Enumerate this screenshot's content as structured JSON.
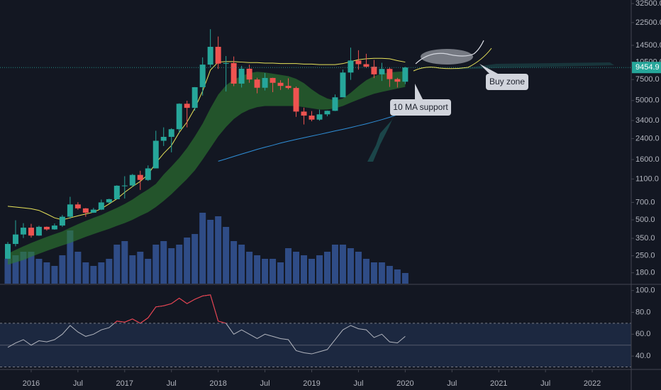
{
  "chart_data": {
    "type": "candlestick",
    "x": [
      "2015-10",
      "2015-11",
      "2015-12",
      "2016-01",
      "2016-02",
      "2016-03",
      "2016-04",
      "2016-05",
      "2016-06",
      "2016-07",
      "2016-08",
      "2016-09",
      "2016-10",
      "2016-11",
      "2016-12",
      "2017-01",
      "2017-02",
      "2017-03",
      "2017-04",
      "2017-05",
      "2017-06",
      "2017-07",
      "2017-08",
      "2017-09",
      "2017-10",
      "2017-11",
      "2017-12",
      "2018-01",
      "2018-02",
      "2018-03",
      "2018-04",
      "2018-05",
      "2018-06",
      "2018-07",
      "2018-08",
      "2018-09",
      "2018-10",
      "2018-11",
      "2018-12",
      "2019-01",
      "2019-02",
      "2019-03",
      "2019-04",
      "2019-05",
      "2019-06",
      "2019-07",
      "2019-08",
      "2019-09",
      "2019-10",
      "2019-11",
      "2019-12",
      "2020-01"
    ],
    "open": [
      236,
      314,
      377,
      430,
      369,
      437,
      416,
      448,
      531,
      673,
      624,
      574,
      609,
      700,
      745,
      966,
      970,
      1190,
      1080,
      1350,
      2300,
      2480,
      2875,
      4700,
      4340,
      6470,
      10000,
      14100,
      10200,
      10300,
      6930,
      9240,
      7500,
      6400,
      7730,
      7040,
      6630,
      6370,
      4040,
      3740,
      3460,
      3830,
      4100,
      5320,
      8580,
      10820,
      10090,
      9600,
      8290,
      9200,
      7560,
      7190
    ],
    "high": [
      326,
      496,
      469,
      463,
      446,
      440,
      466,
      549,
      780,
      703,
      628,
      630,
      740,
      752,
      975,
      1161,
      1212,
      1290,
      1430,
      2790,
      2980,
      2930,
      4740,
      4980,
      6480,
      11500,
      19800,
      17200,
      11800,
      11700,
      9770,
      9990,
      7760,
      8500,
      7760,
      7400,
      7680,
      6550,
      4360,
      4080,
      4190,
      4120,
      5620,
      9100,
      13880,
      13200,
      12330,
      10950,
      10350,
      9500,
      7750,
      9580
    ],
    "low": [
      235,
      300,
      352,
      355,
      367,
      406,
      413,
      437,
      511,
      608,
      531,
      572,
      604,
      685,
      742,
      755,
      945,
      891,
      1060,
      1350,
      2080,
      1840,
      2700,
      2980,
      4110,
      5500,
      9500,
      9200,
      5950,
      6600,
      6430,
      7040,
      5750,
      6070,
      5880,
      6130,
      6200,
      3650,
      3150,
      3350,
      3390,
      3690,
      4080,
      5320,
      7450,
      9070,
      9350,
      7710,
      7300,
      6500,
      6430,
      6860
    ],
    "close": [
      314,
      377,
      430,
      369,
      437,
      416,
      448,
      531,
      673,
      624,
      574,
      609,
      700,
      745,
      966,
      970,
      1190,
      1080,
      1350,
      2300,
      2480,
      2875,
      4700,
      4340,
      6470,
      10000,
      14100,
      10200,
      10300,
      6930,
      9240,
      7500,
      6400,
      7730,
      7040,
      6630,
      6370,
      4040,
      3740,
      3460,
      3830,
      4100,
      5320,
      8580,
      10820,
      10090,
      9600,
      8290,
      9200,
      7560,
      7190,
      9454.9
    ],
    "colors": {
      "up": "#26a69a",
      "down": "#ef5350"
    },
    "xlim": [
      "2015-09",
      "2022-06"
    ],
    "xticks": [
      {
        "value": "2016-01",
        "label": "2016"
      },
      {
        "value": "2016-07",
        "label": "Jul"
      },
      {
        "value": "2017-01",
        "label": "2017"
      },
      {
        "value": "2017-07",
        "label": "Jul"
      },
      {
        "value": "2018-01",
        "label": "2018"
      },
      {
        "value": "2018-07",
        "label": "Jul"
      },
      {
        "value": "2019-01",
        "label": "2019"
      },
      {
        "value": "2019-07",
        "label": "Jul"
      },
      {
        "value": "2020-01",
        "label": "2020"
      },
      {
        "value": "2020-07",
        "label": "Jul"
      },
      {
        "value": "2021-01",
        "label": "2021"
      },
      {
        "value": "2021-07",
        "label": "Jul"
      },
      {
        "value": "2022-01",
        "label": "2022"
      }
    ],
    "ylim": [
      146,
      34800
    ],
    "log_scale": true,
    "yticks": [
      {
        "value": 180,
        "label": "180.0"
      },
      {
        "value": 250,
        "label": "250.0"
      },
      {
        "value": 350,
        "label": "350.0"
      },
      {
        "value": 500,
        "label": "500.0"
      },
      {
        "value": 700,
        "label": "700.0"
      },
      {
        "value": 1100,
        "label": "1100.0"
      },
      {
        "value": 1600,
        "label": "1600.0"
      },
      {
        "value": 2400,
        "label": "2400.0"
      },
      {
        "value": 3400,
        "label": "3400.0"
      },
      {
        "value": 5000,
        "label": "5000.0"
      },
      {
        "value": 7500,
        "label": "7500.0"
      },
      {
        "value": 10500,
        "label": "10500.0"
      },
      {
        "value": 14500,
        "label": "14500.0"
      },
      {
        "value": 22500,
        "label": "22500.0"
      },
      {
        "value": 32500,
        "label": "32500.0"
      }
    ],
    "last_price": 9454.9,
    "last_price_color": "#26a69a",
    "ribbon": {
      "color": "#2e7d32",
      "upper": [
        260,
        280,
        300,
        320,
        340,
        360,
        380,
        400,
        430,
        460,
        490,
        520,
        550,
        590,
        630,
        680,
        740,
        820,
        900,
        1000,
        1200,
        1400,
        1650,
        2000,
        2500,
        3200,
        4300,
        5600,
        6700,
        7500,
        8000,
        8500,
        8700,
        8600,
        8400,
        8200,
        8000,
        7600,
        7000,
        6200,
        5600,
        5200,
        5000,
        5200,
        5800,
        6600,
        7400,
        8000,
        8400,
        8600,
        8700,
        8800
      ],
      "lower": [
        210,
        220,
        230,
        245,
        260,
        275,
        290,
        305,
        320,
        340,
        360,
        380,
        400,
        420,
        445,
        470,
        500,
        540,
        580,
        640,
        720,
        820,
        950,
        1100,
        1300,
        1600,
        2000,
        2500,
        3000,
        3500,
        3900,
        4200,
        4400,
        4500,
        4500,
        4500,
        4500,
        4500,
        4400,
        4300,
        4200,
        4200,
        4300,
        4500,
        4800,
        5100,
        5400,
        5700,
        5900,
        6100,
        6300,
        6500
      ]
    },
    "overlays": [
      {
        "color": "#e8e35a",
        "values": [
          650,
          640,
          630,
          620,
          600,
          560,
          520,
          500,
          520,
          540,
          560,
          580,
          620,
          680,
          750,
          850,
          950,
          1050,
          1200,
          1500,
          1800,
          2100,
          2700,
          3300,
          4300,
          6000,
          9000,
          10500,
          10600,
          10600,
          10500,
          10400,
          10400,
          10300,
          10300,
          10200,
          10200,
          10200,
          10100,
          10100,
          10000,
          10000,
          10000,
          10200,
          10600,
          11000,
          11200,
          11300,
          11300,
          11200,
          10800,
          10500
        ]
      },
      {
        "color": "#2f8fd8",
        "values": [
          null,
          null,
          null,
          null,
          null,
          null,
          null,
          null,
          null,
          null,
          null,
          null,
          null,
          null,
          null,
          null,
          null,
          null,
          null,
          null,
          null,
          null,
          null,
          null,
          null,
          null,
          null,
          1550,
          1620,
          1700,
          1780,
          1860,
          1950,
          2030,
          2110,
          2200,
          2280,
          2360,
          2440,
          2520,
          2600,
          2690,
          2780,
          2870,
          2970,
          3080,
          3190,
          3320,
          3460,
          3620,
          3800,
          4000
        ]
      }
    ],
    "volume": {
      "color": "#3a5fa8",
      "lim": [
        0,
        400
      ],
      "values": [
        35,
        40,
        45,
        45,
        35,
        30,
        25,
        40,
        75,
        45,
        30,
        25,
        30,
        35,
        55,
        60,
        40,
        45,
        35,
        55,
        60,
        50,
        55,
        65,
        70,
        100,
        90,
        95,
        80,
        60,
        55,
        45,
        40,
        35,
        35,
        30,
        50,
        45,
        40,
        35,
        40,
        45,
        55,
        55,
        50,
        45,
        35,
        30,
        30,
        25,
        20,
        15
      ]
    },
    "rsi": {
      "color": "#b2b5be",
      "overbought_color": "#f23645",
      "values": [
        48,
        52,
        55,
        50,
        54,
        53,
        55,
        60,
        68,
        62,
        58,
        60,
        64,
        66,
        72,
        71,
        74,
        70,
        75,
        85,
        86,
        88,
        93,
        88,
        92,
        95,
        96,
        72,
        70,
        60,
        64,
        60,
        56,
        60,
        58,
        56,
        55,
        45,
        43,
        42,
        44,
        46,
        55,
        64,
        68,
        65,
        64,
        57,
        60,
        53,
        52,
        58
      ],
      "ylim": [
        28.4,
        105
      ],
      "yticks": [
        {
          "value": 40,
          "label": "40.0"
        },
        {
          "value": 60,
          "label": "60.0"
        },
        {
          "value": 80,
          "label": "80.0"
        },
        {
          "value": 100,
          "label": "100.0"
        }
      ],
      "band": [
        30,
        70
      ],
      "midline": 50
    },
    "annotations": [
      {
        "text": "10 MA support"
      },
      {
        "text": "Buy zone"
      }
    ]
  }
}
